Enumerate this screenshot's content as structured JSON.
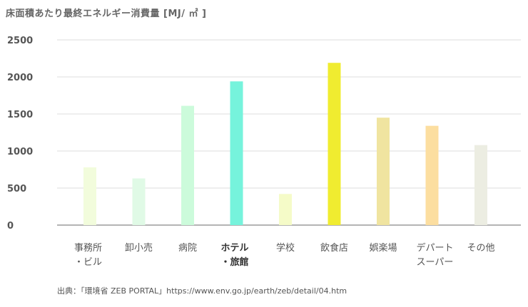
{
  "chart_data": {
    "type": "bar",
    "title": "床面積あたり最終エネルギー消費量 [MJ/ ㎡ ]",
    "categories": [
      [
        "事務所",
        "・ビル"
      ],
      [
        "卸小売"
      ],
      [
        "病院"
      ],
      [
        "ホテル",
        "・旅館"
      ],
      [
        "学校"
      ],
      [
        "飲食店"
      ],
      [
        "娯楽場"
      ],
      [
        "デパート",
        "スーパー"
      ],
      [
        "その他"
      ]
    ],
    "values": [
      780,
      630,
      1610,
      1940,
      420,
      2190,
      1450,
      1340,
      1080
    ],
    "highlighted_category_index": 3,
    "bar_colors": [
      "#f2fcdc",
      "#e0fae6",
      "#ccfbdb",
      "#76f3dc",
      "#f5fbc8",
      "#f0ec30",
      "#f0e4a0",
      "#fcdea0",
      "#ecede2"
    ],
    "ylim": [
      0,
      2500
    ],
    "yticks": [
      0,
      500,
      1000,
      1500,
      2000,
      2500
    ],
    "grid": true
  },
  "source": "出典：「環境省 ZEB PORTAL」https://www.env.go.jp/earth/zeb/detail/04.htm"
}
